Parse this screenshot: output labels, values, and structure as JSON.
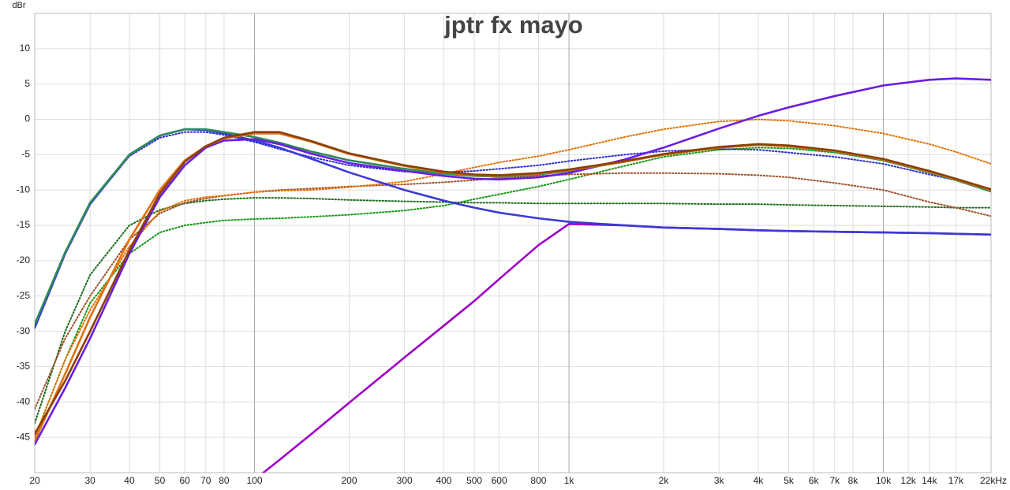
{
  "chart_data": {
    "type": "line",
    "title": "jptr fx mayo",
    "y_label": "dBr",
    "xscale": "log",
    "grid": true,
    "xlim": [
      20,
      22000
    ],
    "ylim": [
      -50,
      15
    ],
    "xticks": [
      20,
      30,
      40,
      50,
      60,
      70,
      80,
      100,
      200,
      300,
      400,
      500,
      600,
      800,
      {
        "value": 1000,
        "label": "1k"
      },
      {
        "value": 2000,
        "label": "2k"
      },
      {
        "value": 3000,
        "label": "3k"
      },
      {
        "value": 4000,
        "label": "4k"
      },
      {
        "value": 5000,
        "label": "5k"
      },
      {
        "value": 6000,
        "label": "6k"
      },
      {
        "value": 7000,
        "label": "7k"
      },
      {
        "value": 8000,
        "label": "8k"
      },
      {
        "value": 10000,
        "label": "10k"
      },
      {
        "value": 12000,
        "label": "12k"
      },
      {
        "value": 14000,
        "label": "14k"
      },
      {
        "value": 17000,
        "label": "17k"
      },
      {
        "value": 22000,
        "label": "22kHz"
      }
    ],
    "yticks": [
      -45,
      -40,
      -35,
      -30,
      -25,
      -20,
      -15,
      -10,
      -5,
      0,
      5,
      10
    ],
    "x": [
      20,
      25,
      30,
      40,
      50,
      60,
      70,
      80,
      100,
      120,
      150,
      200,
      300,
      400,
      500,
      600,
      800,
      1000,
      1500,
      2000,
      3000,
      4000,
      5000,
      7000,
      10000,
      14000,
      17000,
      22000
    ],
    "series": [
      {
        "color": "#109910",
        "style": "dotted",
        "values": [
          -45,
          -34,
          -26,
          -19,
          -16,
          -15,
          -14.6,
          -14.3,
          -14.1,
          -14,
          -13.8,
          -13.5,
          -12.9,
          -12.2,
          -11.3,
          -10.6,
          -9.5,
          -8.5,
          -6.6,
          -5.3,
          -4.3,
          -4,
          -4.1,
          -4.7,
          -5.8,
          -7.5,
          -8.6,
          -10
        ]
      },
      {
        "color": "#1a6b1a",
        "style": "dotted",
        "values": [
          -43,
          -30,
          -22,
          -15,
          -12.8,
          -11.9,
          -11.5,
          -11.3,
          -11.1,
          -11.1,
          -11.2,
          -11.4,
          -11.6,
          -11.7,
          -11.8,
          -11.8,
          -11.9,
          -11.9,
          -11.9,
          -11.9,
          -12,
          -12,
          -12.1,
          -12.2,
          -12.3,
          -12.4,
          -12.5,
          -12.5
        ]
      },
      {
        "color": "#a0522d",
        "style": "dotted",
        "values": [
          -41,
          -31,
          -25,
          -17,
          -13.3,
          -11.8,
          -11.2,
          -10.8,
          -10.3,
          -10,
          -9.8,
          -9.5,
          -9.2,
          -8.9,
          -8.6,
          -8.3,
          -8,
          -7.8,
          -7.6,
          -7.6,
          -7.7,
          -7.9,
          -8.2,
          -9,
          -10,
          -11.7,
          -12.5,
          -13.7
        ]
      },
      {
        "color": "#e07000",
        "style": "dotted",
        "values": [
          -45,
          -34,
          -27,
          -18,
          -13,
          -11.5,
          -11,
          -10.8,
          -10.3,
          -10.1,
          -10,
          -9.6,
          -8.8,
          -7.7,
          -6.8,
          -6.1,
          -5.2,
          -4.3,
          -2.5,
          -1.4,
          -0.3,
          0,
          -0.2,
          -0.9,
          -2,
          -3.5,
          -4.6,
          -6.3
        ]
      },
      {
        "color": "#2b2bd0",
        "style": "dotted",
        "values": [
          -29,
          -18.8,
          -12,
          -5.2,
          -2.6,
          -1.8,
          -1.8,
          -2.2,
          -3.2,
          -4.2,
          -5.3,
          -6.5,
          -7.4,
          -7.5,
          -7.3,
          -7,
          -6.5,
          -5.9,
          -5,
          -4.5,
          -4.2,
          -4.3,
          -4.7,
          -5.3,
          -6.3,
          -7.8,
          -8.6,
          -10
        ]
      },
      {
        "color": "#a000c8",
        "style": "solid",
        "values": [
          null,
          null,
          null,
          null,
          null,
          null,
          null,
          null,
          -51,
          -48.2,
          -44.7,
          -40.1,
          -33.7,
          -29.2,
          -25.7,
          -22.6,
          -17.8,
          -14.8,
          -15,
          -15.3,
          -15.5,
          -15.7,
          -15.8,
          -15.9,
          -16,
          -16.1,
          -16.2,
          -16.3
        ]
      },
      {
        "color": "#3a3ad6",
        "style": "solid",
        "values": [
          -29.5,
          -19,
          -12,
          -5,
          -2.3,
          -1.4,
          -1.5,
          -2,
          -3,
          -4,
          -5.5,
          -7.5,
          -10,
          -11.5,
          -12.5,
          -13.2,
          -14,
          -14.5,
          -15,
          -15.3,
          -15.5,
          -15.7,
          -15.8,
          -15.9,
          -16,
          -16.1,
          -16.2,
          -16.3
        ]
      },
      {
        "color": "#2e8b57",
        "style": "solid",
        "values": [
          -29,
          -18.8,
          -11.8,
          -5,
          -2.3,
          -1.4,
          -1.4,
          -1.8,
          -2.5,
          -3.3,
          -4.5,
          -5.8,
          -7,
          -7.7,
          -8,
          -8.1,
          -7.8,
          -7.3,
          -6,
          -5,
          -4,
          -3.6,
          -3.8,
          -4.6,
          -5.8,
          -7.5,
          -8.6,
          -10.2
        ]
      },
      {
        "color": "#6a1de0",
        "style": "solid",
        "values": [
          -46,
          -38,
          -31,
          -19,
          -11,
          -6.5,
          -4,
          -3,
          -2.8,
          -3.5,
          -4.8,
          -6.2,
          -7.3,
          -8,
          -8.4,
          -8.5,
          -8.2,
          -7.6,
          -5.7,
          -4,
          -1.3,
          0.5,
          1.7,
          3.3,
          4.8,
          5.6,
          5.8,
          5.6
        ]
      },
      {
        "color": "#e07010",
        "style": "solid",
        "values": [
          -45.5,
          -36,
          -28,
          -17,
          -10,
          -5.8,
          -3.8,
          -2.7,
          -2,
          -2,
          -3.1,
          -4.9,
          -6.6,
          -7.5,
          -7.9,
          -8,
          -7.7,
          -7.2,
          -6,
          -5,
          -4,
          -3.6,
          -3.8,
          -4.5,
          -5.7,
          -7.4,
          -8.5,
          -10
        ]
      },
      {
        "color": "#8b4000",
        "style": "solid",
        "values": [
          -44.5,
          -37,
          -30,
          -18.5,
          -10.5,
          -6,
          -3.8,
          -2.6,
          -1.8,
          -1.8,
          -3,
          -4.8,
          -6.5,
          -7.4,
          -7.8,
          -7.9,
          -7.6,
          -7.1,
          -5.9,
          -4.9,
          -3.9,
          -3.5,
          -3.7,
          -4.4,
          -5.6,
          -7.3,
          -8.4,
          -9.9
        ]
      }
    ]
  }
}
